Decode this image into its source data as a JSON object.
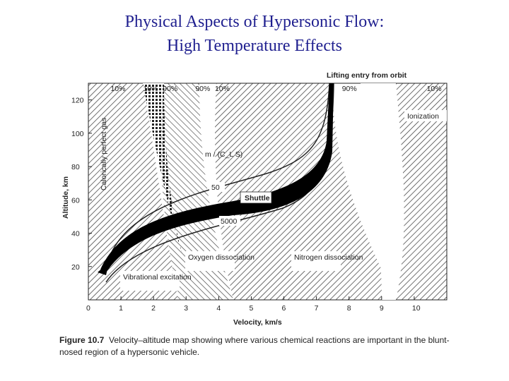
{
  "title_line1": "Physical Aspects of Hypersonic Flow:",
  "title_line2": "High Temperature Effects",
  "caption": {
    "figure_label": "Figure 10.7",
    "text": "Velocity–altitude map showing where various chemical reactions are important in the blunt-nosed region of a hypersonic vehicle."
  },
  "chart_data": {
    "type": "area",
    "title": "Lifting entry from orbit",
    "xlabel": "Velocity, km/s",
    "ylabel": "Altitude, km",
    "xlim": [
      0,
      11
    ],
    "ylim": [
      0,
      130
    ],
    "xticks": [
      "0",
      "1",
      "2",
      "3",
      "4",
      "5",
      "6",
      "7",
      "8",
      "9",
      "10"
    ],
    "yticks": [
      "20",
      "40",
      "60",
      "80",
      "100",
      "120"
    ],
    "top_percent_labels": [
      {
        "text": "10%",
        "x": 0.9
      },
      {
        "text": "10%",
        "x": 1.9
      },
      {
        "text": "90%",
        "x": 2.5
      },
      {
        "text": "90%",
        "x": 3.5
      },
      {
        "text": "10%",
        "x": 4.1
      },
      {
        "text": "90%",
        "x": 8.0
      },
      {
        "text": "10%",
        "x": 10.6
      }
    ],
    "regions": [
      {
        "name": "Calorically perfect gas",
        "x": [
          0,
          1.0
        ]
      },
      {
        "name": "Vibrational excitation",
        "x": [
          1.0,
          2.6
        ]
      },
      {
        "name": "Oxygen dissociation",
        "x": [
          2.6,
          5.2
        ]
      },
      {
        "name": "Nitrogen dissociation",
        "x": [
          5.2,
          8.5
        ]
      },
      {
        "name": "Ionization",
        "x": [
          8.5,
          11.0
        ]
      }
    ],
    "trajectory_label": "Shuttle",
    "parameter_label": "m / (C_L S)",
    "parameter_values": [
      "50",
      "5000"
    ],
    "colors": {
      "hatch": "#333333",
      "trajectory": "#000000",
      "axis": "#222222"
    }
  }
}
